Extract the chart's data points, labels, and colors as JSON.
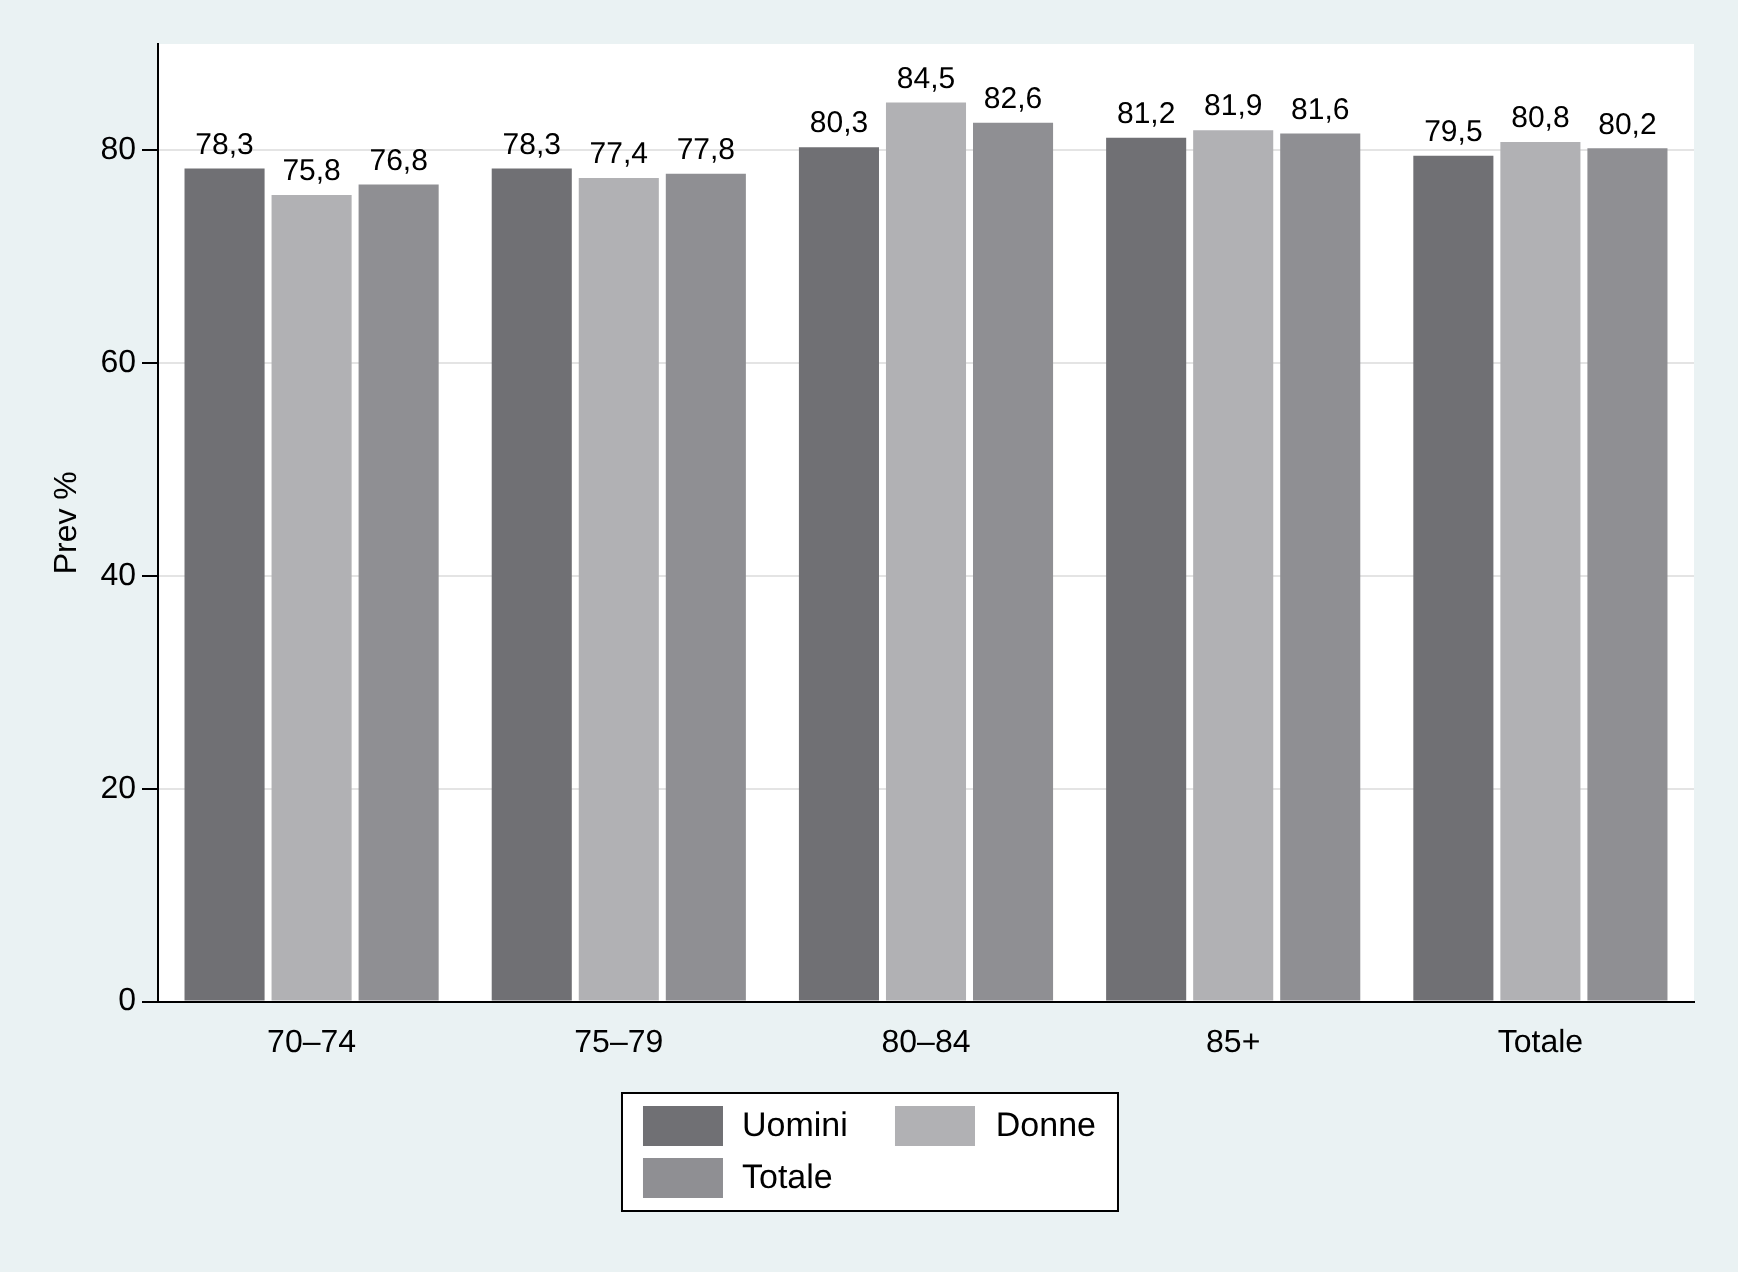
{
  "chart_data": {
    "type": "bar",
    "ylabel": "Prev %",
    "categories": [
      "70–74",
      "75–79",
      "80–84",
      "85+",
      "Totale"
    ],
    "series": [
      {
        "name": "Uomini",
        "color": "#707074",
        "values": [
          78.3,
          78.3,
          80.3,
          81.2,
          79.5
        ],
        "value_labels": [
          "78,3",
          "78,3",
          "80,3",
          "81,2",
          "79,5"
        ]
      },
      {
        "name": "Donne",
        "color": "#b1b1b4",
        "values": [
          75.8,
          77.4,
          84.5,
          81.9,
          80.8
        ],
        "value_labels": [
          "75,8",
          "77,4",
          "84,5",
          "81,9",
          "80,8"
        ]
      },
      {
        "name": "Totale",
        "color": "#8f8f93",
        "values": [
          76.8,
          77.8,
          82.6,
          81.6,
          80.2
        ],
        "value_labels": [
          "76,8",
          "77,8",
          "82,6",
          "81,6",
          "80,2"
        ]
      }
    ],
    "ylim": [
      0,
      90
    ],
    "yticks": [
      0,
      20,
      40,
      60,
      80
    ],
    "grid": "y",
    "legend": "bottom"
  }
}
